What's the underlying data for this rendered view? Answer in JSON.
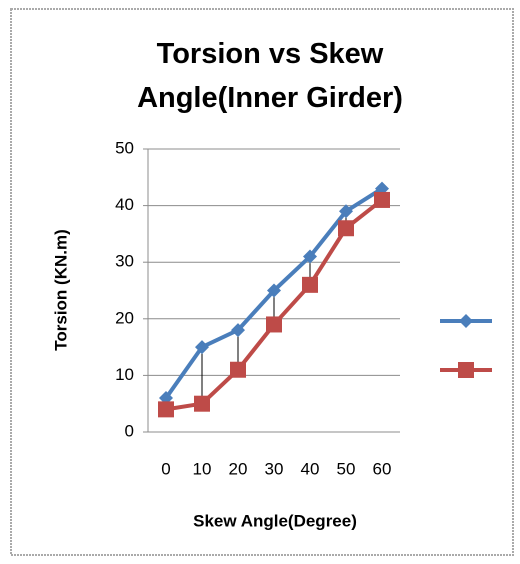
{
  "chart_data": {
    "type": "line",
    "title": "Torsion vs Skew Angle(Inner Girder)",
    "x_label": "Skew Angle(Degree)",
    "y_label": "Torsion (KN.m)",
    "categories": [
      0,
      10,
      20,
      30,
      40,
      50,
      60
    ],
    "series": [
      {
        "color": "#4a7ebb",
        "marker": "diamond",
        "values": [
          6,
          15,
          18,
          25,
          31,
          39,
          43
        ]
      },
      {
        "color": "#be4b48",
        "marker": "square",
        "values": [
          4,
          5,
          11,
          19,
          26,
          36,
          41
        ]
      }
    ],
    "ylim": [
      0,
      50
    ],
    "yticks": [
      0,
      10,
      20,
      30,
      40,
      50
    ],
    "grid": true,
    "high_low_lines": true,
    "legend": "right"
  }
}
